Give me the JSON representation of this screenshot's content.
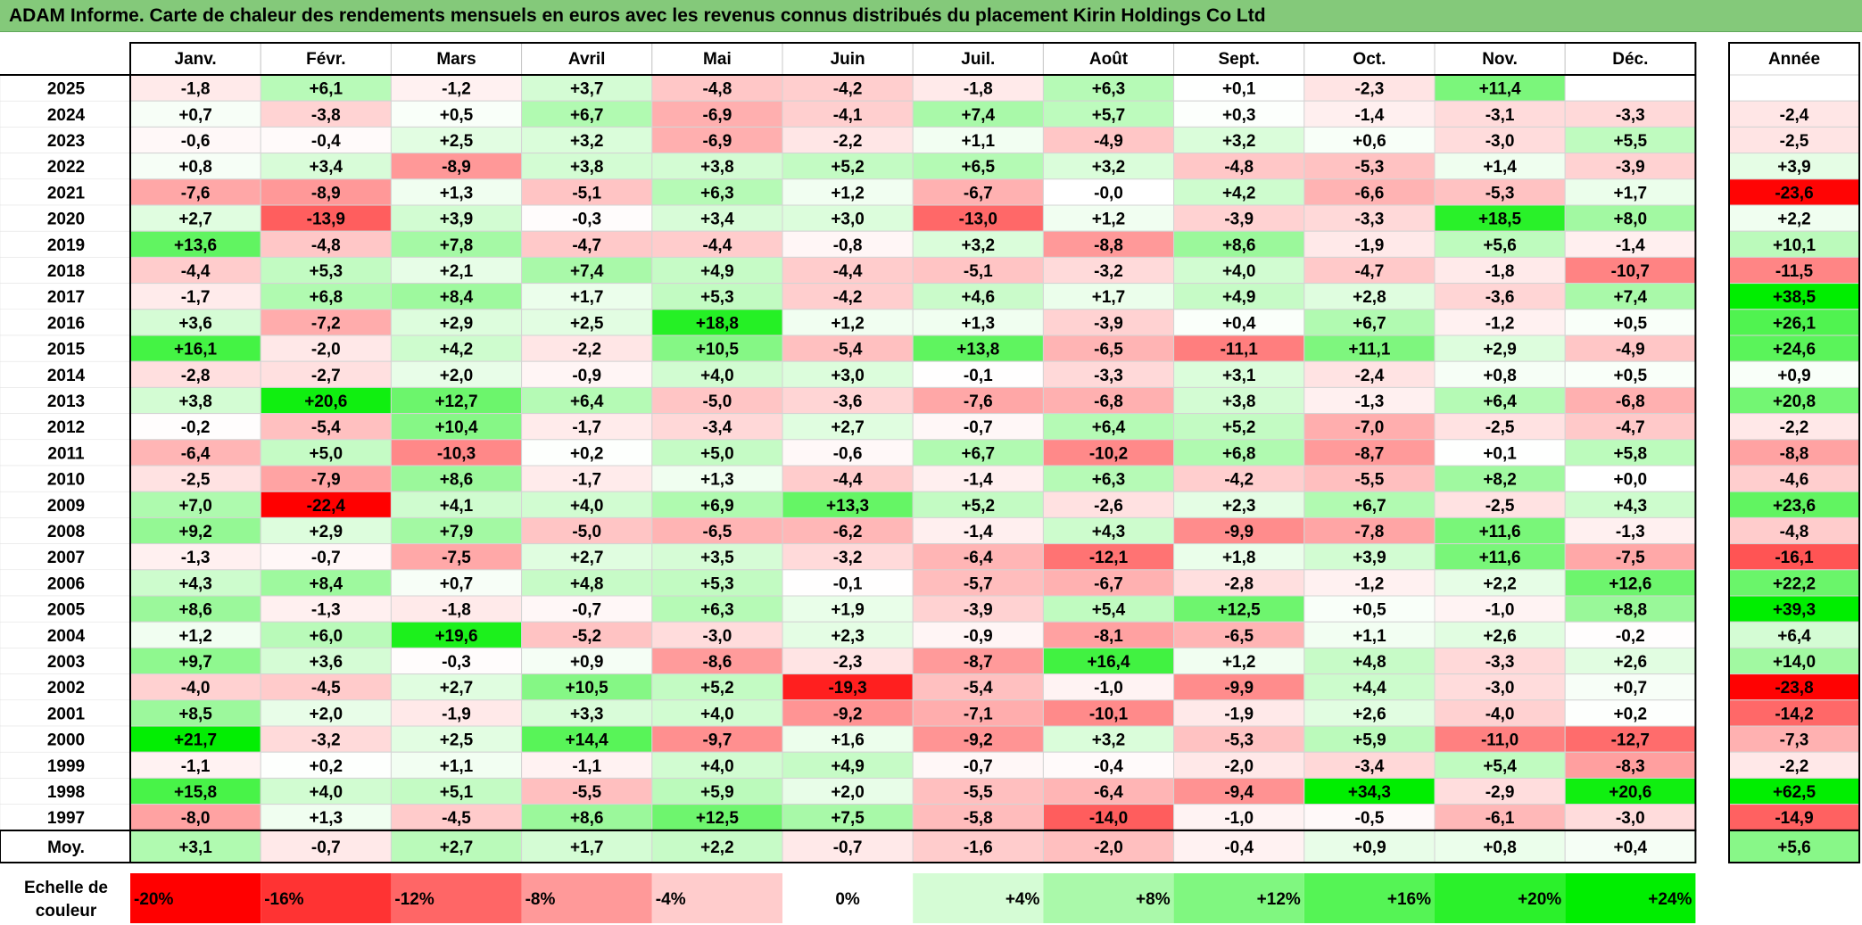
{
  "title": "ADAM Informe. Carte de chaleur des rendements mensuels en euros avec les revenus connus distribués du placement Kirin Holdings Co Ltd",
  "colors": {
    "title_bar": "#84c97a",
    "negative_max": "#ff0000",
    "positive_max": "#00ee00",
    "neutral": "#ffffff"
  },
  "chart_data": {
    "type": "heatmap",
    "months": [
      "Janv.",
      "Févr.",
      "Mars",
      "Avril",
      "Mai",
      "Juin",
      "Juil.",
      "Août",
      "Sept.",
      "Oct.",
      "Nov.",
      "Déc."
    ],
    "year_header": "Année",
    "rows": [
      {
        "year": "2025",
        "values": [
          "-1,8",
          "+6,1",
          "-1,2",
          "+3,7",
          "-4,8",
          "-4,2",
          "-1,8",
          "+6,3",
          "+0,1",
          "-2,3",
          "+11,4",
          ""
        ],
        "annual": ""
      },
      {
        "year": "2024",
        "values": [
          "+0,7",
          "-3,8",
          "+0,5",
          "+6,7",
          "-6,9",
          "-4,1",
          "+7,4",
          "+5,7",
          "+0,3",
          "-1,4",
          "-3,1",
          "-3,3"
        ],
        "annual": "-2,4"
      },
      {
        "year": "2023",
        "values": [
          "-0,6",
          "-0,4",
          "+2,5",
          "+3,2",
          "-6,9",
          "-2,2",
          "+1,1",
          "-4,9",
          "+3,2",
          "+0,6",
          "-3,0",
          "+5,5"
        ],
        "annual": "-2,5"
      },
      {
        "year": "2022",
        "values": [
          "+0,8",
          "+3,4",
          "-8,9",
          "+3,8",
          "+3,8",
          "+5,2",
          "+6,5",
          "+3,2",
          "-4,8",
          "-5,3",
          "+1,4",
          "-3,9"
        ],
        "annual": "+3,9"
      },
      {
        "year": "2021",
        "values": [
          "-7,6",
          "-8,9",
          "+1,3",
          "-5,1",
          "+6,3",
          "+1,2",
          "-6,7",
          "-0,0",
          "+4,2",
          "-6,6",
          "-5,3",
          "+1,7"
        ],
        "annual": "-23,6"
      },
      {
        "year": "2020",
        "values": [
          "+2,7",
          "-13,9",
          "+3,9",
          "-0,3",
          "+3,4",
          "+3,0",
          "-13,0",
          "+1,2",
          "-3,9",
          "-3,3",
          "+18,5",
          "+8,0"
        ],
        "annual": "+2,2"
      },
      {
        "year": "2019",
        "values": [
          "+13,6",
          "-4,8",
          "+7,8",
          "-4,7",
          "-4,4",
          "-0,8",
          "+3,2",
          "-8,8",
          "+8,6",
          "-1,9",
          "+5,6",
          "-1,4"
        ],
        "annual": "+10,1"
      },
      {
        "year": "2018",
        "values": [
          "-4,4",
          "+5,3",
          "+2,1",
          "+7,4",
          "+4,9",
          "-4,4",
          "-5,1",
          "-3,2",
          "+4,0",
          "-4,7",
          "-1,8",
          "-10,7"
        ],
        "annual": "-11,5"
      },
      {
        "year": "2017",
        "values": [
          "-1,7",
          "+6,8",
          "+8,4",
          "+1,7",
          "+5,3",
          "-4,2",
          "+4,6",
          "+1,7",
          "+4,9",
          "+2,8",
          "-3,6",
          "+7,4"
        ],
        "annual": "+38,5"
      },
      {
        "year": "2016",
        "values": [
          "+3,6",
          "-7,2",
          "+2,9",
          "+2,5",
          "+18,8",
          "+1,2",
          "+1,3",
          "-3,9",
          "+0,4",
          "+6,7",
          "-1,2",
          "+0,5"
        ],
        "annual": "+26,1"
      },
      {
        "year": "2015",
        "values": [
          "+16,1",
          "-2,0",
          "+4,2",
          "-2,2",
          "+10,5",
          "-5,4",
          "+13,8",
          "-6,5",
          "-11,1",
          "+11,1",
          "+2,9",
          "-4,9"
        ],
        "annual": "+24,6"
      },
      {
        "year": "2014",
        "values": [
          "-2,8",
          "-2,7",
          "+2,0",
          "-0,9",
          "+4,0",
          "+3,0",
          "-0,1",
          "-3,3",
          "+3,1",
          "-2,4",
          "+0,8",
          "+0,5"
        ],
        "annual": "+0,9"
      },
      {
        "year": "2013",
        "values": [
          "+3,8",
          "+20,6",
          "+12,7",
          "+6,4",
          "-5,0",
          "-3,6",
          "-7,6",
          "-6,8",
          "+3,8",
          "-1,3",
          "+6,4",
          "-6,8"
        ],
        "annual": "+20,8"
      },
      {
        "year": "2012",
        "values": [
          "-0,2",
          "-5,4",
          "+10,4",
          "-1,7",
          "-3,4",
          "+2,7",
          "-0,7",
          "+6,4",
          "+5,2",
          "-7,0",
          "-2,5",
          "-4,7"
        ],
        "annual": "-2,2"
      },
      {
        "year": "2011",
        "values": [
          "-6,4",
          "+5,0",
          "-10,3",
          "+0,2",
          "+5,0",
          "-0,6",
          "+6,7",
          "-10,2",
          "+6,8",
          "-8,7",
          "+0,1",
          "+5,8"
        ],
        "annual": "-8,8"
      },
      {
        "year": "2010",
        "values": [
          "-2,5",
          "-7,9",
          "+8,6",
          "-1,7",
          "+1,3",
          "-4,4",
          "-1,4",
          "+6,3",
          "-4,2",
          "-5,5",
          "+8,2",
          "+0,0"
        ],
        "annual": "-4,6"
      },
      {
        "year": "2009",
        "values": [
          "+7,0",
          "-22,4",
          "+4,1",
          "+4,0",
          "+6,9",
          "+13,3",
          "+5,2",
          "-2,6",
          "+2,3",
          "+6,7",
          "-2,5",
          "+4,3"
        ],
        "annual": "+23,6"
      },
      {
        "year": "2008",
        "values": [
          "+9,2",
          "+2,9",
          "+7,9",
          "-5,0",
          "-6,5",
          "-6,2",
          "-1,4",
          "+4,3",
          "-9,9",
          "-7,8",
          "+11,6",
          "-1,3"
        ],
        "annual": "-4,8"
      },
      {
        "year": "2007",
        "values": [
          "-1,3",
          "-0,7",
          "-7,5",
          "+2,7",
          "+3,5",
          "-3,2",
          "-6,4",
          "-12,1",
          "+1,8",
          "+3,9",
          "+11,6",
          "-7,5"
        ],
        "annual": "-16,1"
      },
      {
        "year": "2006",
        "values": [
          "+4,3",
          "+8,4",
          "+0,7",
          "+4,8",
          "+5,3",
          "-0,1",
          "-5,7",
          "-6,7",
          "-2,8",
          "-1,2",
          "+2,2",
          "+12,6"
        ],
        "annual": "+22,2"
      },
      {
        "year": "2005",
        "values": [
          "+8,6",
          "-1,3",
          "-1,8",
          "-0,7",
          "+6,3",
          "+1,9",
          "-3,9",
          "+5,4",
          "+12,5",
          "+0,5",
          "-1,0",
          "+8,8"
        ],
        "annual": "+39,3"
      },
      {
        "year": "2004",
        "values": [
          "+1,2",
          "+6,0",
          "+19,6",
          "-5,2",
          "-3,0",
          "+2,3",
          "-0,9",
          "-8,1",
          "-6,5",
          "+1,1",
          "+2,6",
          "-0,2"
        ],
        "annual": "+6,4"
      },
      {
        "year": "2003",
        "values": [
          "+9,7",
          "+3,6",
          "-0,3",
          "+0,9",
          "-8,6",
          "-2,3",
          "-8,7",
          "+16,4",
          "+1,2",
          "+4,8",
          "-3,3",
          "+2,6"
        ],
        "annual": "+14,0"
      },
      {
        "year": "2002",
        "values": [
          "-4,0",
          "-4,5",
          "+2,7",
          "+10,5",
          "+5,2",
          "-19,3",
          "-5,4",
          "-1,0",
          "-9,9",
          "+4,4",
          "-3,0",
          "+0,7"
        ],
        "annual": "-23,8"
      },
      {
        "year": "2001",
        "values": [
          "+8,5",
          "+2,0",
          "-1,9",
          "+3,3",
          "+4,0",
          "-9,2",
          "-7,1",
          "-10,1",
          "-1,9",
          "+2,6",
          "-4,0",
          "+0,2"
        ],
        "annual": "-14,2"
      },
      {
        "year": "2000",
        "values": [
          "+21,7",
          "-3,2",
          "+2,5",
          "+14,4",
          "-9,7",
          "+1,6",
          "-9,2",
          "+3,2",
          "-5,3",
          "+5,9",
          "-11,0",
          "-12,7"
        ],
        "annual": "-7,3"
      },
      {
        "year": "1999",
        "values": [
          "-1,1",
          "+0,2",
          "+1,1",
          "-1,1",
          "+4,0",
          "+4,9",
          "-0,7",
          "-0,4",
          "-2,0",
          "-3,4",
          "+5,4",
          "-8,3"
        ],
        "annual": "-2,2"
      },
      {
        "year": "1998",
        "values": [
          "+15,8",
          "+4,0",
          "+5,1",
          "-5,5",
          "+5,9",
          "+2,0",
          "-5,5",
          "-6,4",
          "-9,4",
          "+34,3",
          "-2,9",
          "+20,6"
        ],
        "annual": "+62,5"
      },
      {
        "year": "1997",
        "values": [
          "-8,0",
          "+1,3",
          "-4,5",
          "+8,6",
          "+12,5",
          "+7,5",
          "-5,8",
          "-14,0",
          "-1,0",
          "-0,5",
          "-6,1",
          "-3,0"
        ],
        "annual": "-14,9"
      }
    ],
    "average": {
      "label": "Moy.",
      "values": [
        "+3,1",
        "-0,7",
        "+2,7",
        "+1,7",
        "+2,2",
        "-0,7",
        "-1,6",
        "-2,0",
        "-0,4",
        "+0,9",
        "+0,8",
        "+0,4"
      ],
      "annual": "+5,6"
    },
    "scale": {
      "label_lines": [
        "Echelle de",
        "couleur"
      ],
      "steps": [
        {
          "label": "-20%",
          "value": -20
        },
        {
          "label": "-16%",
          "value": -16
        },
        {
          "label": "-12%",
          "value": -12
        },
        {
          "label": "-8%",
          "value": -8
        },
        {
          "label": "-4%",
          "value": -4
        },
        {
          "label": "0%",
          "value": 0
        },
        {
          "label": "+4%",
          "value": 4
        },
        {
          "label": "+8%",
          "value": 8
        },
        {
          "label": "+12%",
          "value": 12
        },
        {
          "label": "+16%",
          "value": 16
        },
        {
          "label": "+20%",
          "value": 20
        },
        {
          "label": "+24%",
          "value": 24
        }
      ]
    }
  }
}
